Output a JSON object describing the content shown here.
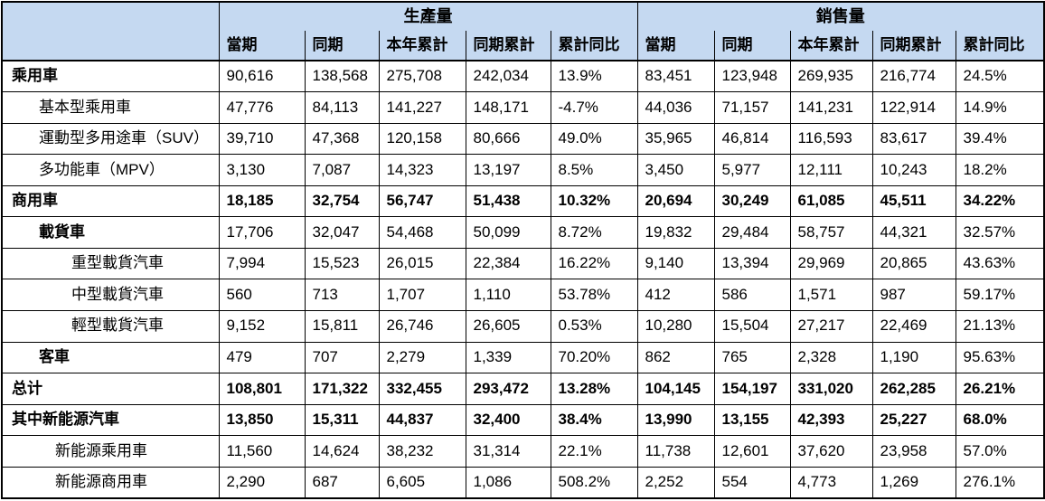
{
  "table": {
    "corner_label": "",
    "groups": [
      "生產量",
      "銷售量"
    ],
    "columns": [
      "當期",
      "同期",
      "本年累計",
      "同期累計",
      "累計同比"
    ],
    "rows": [
      {
        "label": "乘用車",
        "indent": 0,
        "bold_label": true,
        "bold_values": false,
        "production": [
          "90,616",
          "138,568",
          "275,708",
          "242,034",
          "13.9%"
        ],
        "sales": [
          "83,451",
          "123,948",
          "269,935",
          "216,774",
          "24.5%"
        ]
      },
      {
        "label": "基本型乘用車",
        "indent": 1,
        "bold_label": false,
        "bold_values": false,
        "production": [
          "47,776",
          "84,113",
          "141,227",
          "148,171",
          "-4.7%"
        ],
        "sales": [
          "44,036",
          "71,157",
          "141,231",
          "122,914",
          "14.9%"
        ]
      },
      {
        "label": "運動型多用途車（SUV）",
        "indent": 1,
        "bold_label": false,
        "bold_values": false,
        "production": [
          "39,710",
          "47,368",
          "120,158",
          "80,666",
          "49.0%"
        ],
        "sales": [
          "35,965",
          "46,814",
          "116,593",
          "83,617",
          "39.4%"
        ]
      },
      {
        "label": "多功能車（MPV）",
        "indent": 1,
        "bold_label": false,
        "bold_values": false,
        "production": [
          "3,130",
          "7,087",
          "14,323",
          "13,197",
          "8.5%"
        ],
        "sales": [
          "3,450",
          "5,977",
          "12,111",
          "10,243",
          "18.2%"
        ]
      },
      {
        "label": "商用車",
        "indent": 0,
        "bold_label": true,
        "bold_values": true,
        "production": [
          "18,185",
          "32,754",
          "56,747",
          "51,438",
          "10.32%"
        ],
        "sales": [
          "20,694",
          "30,249",
          "61,085",
          "45,511",
          "34.22%"
        ]
      },
      {
        "label": "載貨車",
        "indent": 1,
        "bold_label": true,
        "bold_values": false,
        "production": [
          "17,706",
          "32,047",
          "54,468",
          "50,099",
          "8.72%"
        ],
        "sales": [
          "19,832",
          "29,484",
          "58,757",
          "44,321",
          "32.57%"
        ]
      },
      {
        "label": "重型載貨汽車",
        "indent": 3,
        "bold_label": false,
        "bold_values": false,
        "production": [
          "7,994",
          "15,523",
          "26,015",
          "22,384",
          "16.22%"
        ],
        "sales": [
          "9,140",
          "13,394",
          "29,969",
          "20,865",
          "43.63%"
        ]
      },
      {
        "label": "中型載貨汽車",
        "indent": 3,
        "bold_label": false,
        "bold_values": false,
        "production": [
          "560",
          "713",
          "1,707",
          "1,110",
          "53.78%"
        ],
        "sales": [
          "412",
          "586",
          "1,571",
          "987",
          "59.17%"
        ]
      },
      {
        "label": "輕型載貨汽車",
        "indent": 3,
        "bold_label": false,
        "bold_values": false,
        "production": [
          "9,152",
          "15,811",
          "26,746",
          "26,605",
          "0.53%"
        ],
        "sales": [
          "10,280",
          "15,504",
          "27,217",
          "22,469",
          "21.13%"
        ]
      },
      {
        "label": "客車",
        "indent": 1,
        "bold_label": true,
        "bold_values": false,
        "production": [
          "479",
          "707",
          "2,279",
          "1,339",
          "70.20%"
        ],
        "sales": [
          "862",
          "765",
          "2,328",
          "1,190",
          "95.63%"
        ]
      },
      {
        "label": "总计",
        "indent": 0,
        "bold_label": true,
        "bold_values": true,
        "production": [
          "108,801",
          "171,322",
          "332,455",
          "293,472",
          "13.28%"
        ],
        "sales": [
          "104,145",
          "154,197",
          "331,020",
          "262,285",
          "26.21%"
        ]
      },
      {
        "label": "其中新能源汽車",
        "indent": 0,
        "bold_label": true,
        "bold_values": true,
        "production": [
          "13,850",
          "15,311",
          "44,837",
          "32,400",
          "38.4%"
        ],
        "sales": [
          "13,990",
          "13,155",
          "42,393",
          "25,227",
          "68.0%"
        ]
      },
      {
        "label": "新能源乘用車",
        "indent": 2,
        "bold_label": false,
        "bold_values": false,
        "production": [
          "11,560",
          "14,624",
          "38,232",
          "31,314",
          "22.1%"
        ],
        "sales": [
          "11,738",
          "12,601",
          "37,620",
          "23,958",
          "57.0%"
        ]
      },
      {
        "label": "新能源商用車",
        "indent": 2,
        "bold_label": false,
        "bold_values": false,
        "production": [
          "2,290",
          "687",
          "6,605",
          "1,086",
          "508.2%"
        ],
        "sales": [
          "2,252",
          "554",
          "4,773",
          "1,269",
          "276.1%"
        ]
      }
    ]
  },
  "colors": {
    "header_bg": "#c5d9f1",
    "border": "#000000",
    "text": "#000000",
    "background": "#ffffff"
  }
}
